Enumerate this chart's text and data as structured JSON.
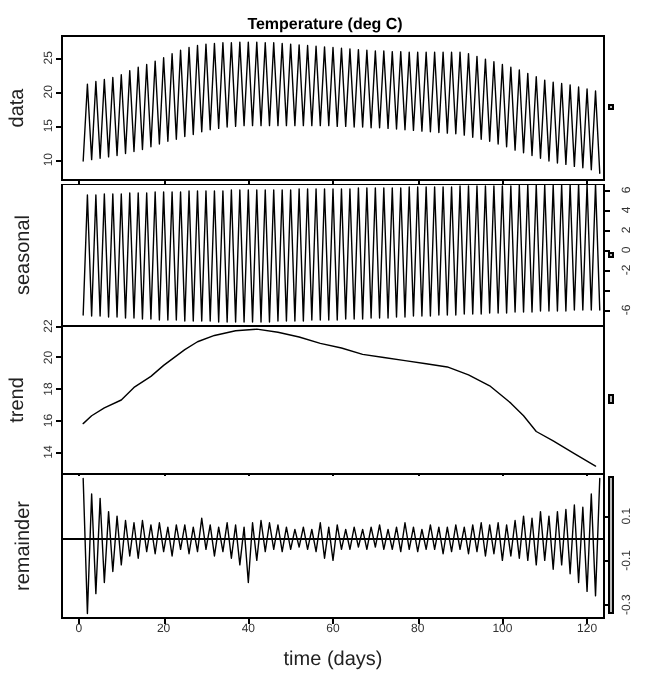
{
  "chart_data": [
    {
      "type": "line",
      "title": "Temperature (deg C)",
      "ylabel": "data",
      "xlim": [
        -4,
        124
      ],
      "xticks": [
        0,
        20,
        40,
        60,
        80,
        100,
        120
      ],
      "ylim": [
        7,
        28.2
      ],
      "yticks": [
        10,
        15,
        20,
        25
      ],
      "tick_labels": "y",
      "marker": "none",
      "x": [
        1,
        2,
        3,
        4,
        5,
        6,
        7,
        8,
        9,
        10,
        11,
        12,
        13,
        14,
        15,
        16,
        17,
        18,
        19,
        20,
        21,
        22,
        23,
        24,
        25,
        26,
        27,
        28,
        29,
        30,
        31,
        32,
        33,
        34,
        35,
        36,
        37,
        38,
        39,
        40,
        41,
        42,
        43,
        44,
        45,
        46,
        47,
        48,
        49,
        50,
        51,
        52,
        53,
        54,
        55,
        56,
        57,
        58,
        59,
        60,
        61,
        62,
        63,
        64,
        65,
        66,
        67,
        68,
        69,
        70,
        71,
        72,
        73,
        74,
        75,
        76,
        77,
        78,
        79,
        80,
        81,
        82,
        83,
        84,
        85,
        86,
        87,
        88,
        89,
        90,
        91,
        92,
        93,
        94,
        95,
        96,
        97,
        98,
        99,
        100,
        101,
        102,
        103,
        104,
        105,
        106,
        107,
        108,
        109,
        110,
        111,
        112,
        113,
        114,
        115,
        116,
        117,
        118,
        119,
        120,
        121,
        122,
        123
      ],
      "series": [
        {
          "color": "#000000",
          "values": [
            9.8,
            21.1,
            10.0,
            21.5,
            10.2,
            21.8,
            10.4,
            22.1,
            10.6,
            22.5,
            10.9,
            23.1,
            11.2,
            23.6,
            11.5,
            24.0,
            11.9,
            24.5,
            12.3,
            25.0,
            12.7,
            25.6,
            13.0,
            26.1,
            13.4,
            26.5,
            13.7,
            26.8,
            14.1,
            27.0,
            14.4,
            27.1,
            14.6,
            27.2,
            14.8,
            27.2,
            14.9,
            27.3,
            15.0,
            27.3,
            15.0,
            27.3,
            15.0,
            27.2,
            15.0,
            27.2,
            15.0,
            27.1,
            15.0,
            27.0,
            15.0,
            26.9,
            15.0,
            26.8,
            15.0,
            26.7,
            15.0,
            26.6,
            15.0,
            26.5,
            14.9,
            26.4,
            14.9,
            26.3,
            14.8,
            26.2,
            14.8,
            26.1,
            14.7,
            26.0,
            14.7,
            26.0,
            14.6,
            25.9,
            14.5,
            25.9,
            14.4,
            25.8,
            14.3,
            25.8,
            14.2,
            25.8,
            14.1,
            25.8,
            14.0,
            25.8,
            13.9,
            25.8,
            13.8,
            25.8,
            13.6,
            25.6,
            13.3,
            25.2,
            13.0,
            24.8,
            12.7,
            24.4,
            12.3,
            24.0,
            11.9,
            23.6,
            11.4,
            23.2,
            11.0,
            22.7,
            10.6,
            22.2,
            10.2,
            21.7,
            9.8,
            21.4,
            9.5,
            21.2,
            9.3,
            21.0,
            9.0,
            20.7,
            8.8,
            20.4,
            8.5,
            20.1,
            8.0
          ]
        }
      ]
    },
    {
      "type": "line",
      "ylabel": "seasonal",
      "xlim": [
        -4,
        124
      ],
      "xticks": [
        0,
        20,
        40,
        60,
        80,
        100,
        120
      ],
      "y2lim": [
        -7.6,
        6.6
      ],
      "y2ticks": [
        -6,
        {
          "value": -4,
          "label": null
        },
        -2,
        0,
        2,
        4,
        6
      ],
      "tick_labels": "y",
      "marker": "none",
      "x": [
        1,
        2,
        3,
        4,
        5,
        6,
        7,
        8,
        9,
        10,
        11,
        12,
        13,
        14,
        15,
        16,
        17,
        18,
        19,
        20,
        21,
        22,
        23,
        24,
        25,
        26,
        27,
        28,
        29,
        30,
        31,
        32,
        33,
        34,
        35,
        36,
        37,
        38,
        39,
        40,
        41,
        42,
        43,
        44,
        45,
        46,
        47,
        48,
        49,
        50,
        51,
        52,
        53,
        54,
        55,
        56,
        57,
        58,
        59,
        60,
        61,
        62,
        63,
        64,
        65,
        66,
        67,
        68,
        69,
        70,
        71,
        72,
        73,
        74,
        75,
        76,
        77,
        78,
        79,
        80,
        81,
        82,
        83,
        84,
        85,
        86,
        87,
        88,
        89,
        90,
        91,
        92,
        93,
        94,
        95,
        96,
        97,
        98,
        99,
        100,
        101,
        102,
        103,
        104,
        105,
        106,
        107,
        108,
        109,
        110,
        111,
        112,
        113,
        114,
        115,
        116,
        117,
        118,
        119,
        120,
        121,
        122,
        123
      ],
      "series": [
        {
          "color": "#000000",
          "axis": "y2",
          "values": [
            -6.5,
            5.5,
            -6.6,
            5.5,
            -6.6,
            5.6,
            -6.7,
            5.6,
            -6.7,
            5.6,
            -6.8,
            5.7,
            -6.8,
            5.7,
            -6.9,
            5.7,
            -6.9,
            5.8,
            -7.0,
            5.8,
            -7.0,
            5.8,
            -7.0,
            5.8,
            -7.1,
            5.9,
            -7.1,
            5.9,
            -7.1,
            5.9,
            -7.1,
            5.9,
            -7.2,
            5.9,
            -7.2,
            6.0,
            -7.2,
            6.0,
            -7.2,
            6.0,
            -7.2,
            6.0,
            -7.2,
            6.0,
            -7.2,
            6.0,
            -7.1,
            6.0,
            -7.1,
            6.0,
            -7.1,
            6.1,
            -7.1,
            6.1,
            -7.0,
            6.1,
            -7.0,
            6.1,
            -7.0,
            6.1,
            -7.0,
            6.1,
            -6.9,
            6.1,
            -6.9,
            6.2,
            -6.9,
            6.2,
            -6.8,
            6.2,
            -6.8,
            6.2,
            -6.8,
            6.2,
            -6.7,
            6.2,
            -6.7,
            6.3,
            -6.6,
            6.3,
            -6.6,
            6.3,
            -6.6,
            6.3,
            -6.5,
            6.3,
            -6.5,
            6.3,
            -6.5,
            6.4,
            -6.4,
            6.4,
            -6.4,
            6.4,
            -6.4,
            6.4,
            -6.3,
            6.4,
            -6.3,
            6.4,
            -6.3,
            6.4,
            -6.2,
            6.5,
            -6.2,
            6.5,
            -6.2,
            6.5,
            -6.1,
            6.5,
            -6.1,
            6.5,
            -6.1,
            6.5,
            -6.1,
            6.6,
            -6.0,
            6.6,
            -6.0,
            6.6,
            -6.0,
            6.6,
            -6.0
          ]
        }
      ]
    },
    {
      "type": "line",
      "ylabel": "trend",
      "xlim": [
        -4,
        124
      ],
      "xticks": [
        0,
        20,
        40,
        60,
        80,
        100,
        120
      ],
      "ylim": [
        12.6,
        22
      ],
      "yticks": [
        14,
        16,
        18,
        20,
        22
      ],
      "tick_labels": "y",
      "marker": "none",
      "series": [
        {
          "color": "#000000",
          "x": [
            1,
            3,
            6,
            10,
            13,
            17,
            20,
            25,
            28,
            32,
            37,
            42,
            47,
            52,
            57,
            62,
            67,
            72,
            77,
            82,
            87,
            92,
            97,
            102,
            105,
            108,
            112,
            117,
            122
          ],
          "values": [
            15.8,
            16.3,
            16.8,
            17.3,
            18.1,
            18.8,
            19.5,
            20.5,
            21.0,
            21.4,
            21.7,
            21.8,
            21.6,
            21.3,
            20.9,
            20.6,
            20.2,
            20.0,
            19.8,
            19.6,
            19.4,
            18.9,
            18.2,
            17.1,
            16.3,
            15.3,
            14.7,
            13.9,
            13.1
          ]
        }
      ]
    },
    {
      "type": "line",
      "ylabel": "remainder",
      "xlabel": "time (days)",
      "xlim": [
        -4,
        124
      ],
      "xticks": [
        0,
        20,
        40,
        60,
        80,
        100,
        120
      ],
      "y2lim": [
        -0.36,
        0.29
      ],
      "y2ticks": [
        -0.3,
        -0.1,
        0.1
      ],
      "marker": "none",
      "ref_lines": [
        {
          "axis": "y2",
          "value": 0,
          "color": "#000000"
        }
      ],
      "x": [
        1,
        2,
        3,
        4,
        5,
        6,
        7,
        8,
        9,
        10,
        11,
        12,
        13,
        14,
        15,
        16,
        17,
        18,
        19,
        20,
        21,
        22,
        23,
        24,
        25,
        26,
        27,
        28,
        29,
        30,
        31,
        32,
        33,
        34,
        35,
        36,
        37,
        38,
        39,
        40,
        41,
        42,
        43,
        44,
        45,
        46,
        47,
        48,
        49,
        50,
        51,
        52,
        53,
        54,
        55,
        56,
        57,
        58,
        59,
        60,
        61,
        62,
        63,
        64,
        65,
        66,
        67,
        68,
        69,
        70,
        71,
        72,
        73,
        74,
        75,
        76,
        77,
        78,
        79,
        80,
        81,
        82,
        83,
        84,
        85,
        86,
        87,
        88,
        89,
        90,
        91,
        92,
        93,
        94,
        95,
        96,
        97,
        98,
        99,
        100,
        101,
        102,
        103,
        104,
        105,
        106,
        107,
        108,
        109,
        110,
        111,
        112,
        113,
        114,
        115,
        116,
        117,
        118,
        119,
        120,
        121,
        122,
        123
      ],
      "series": [
        {
          "color": "#000000",
          "axis": "y2",
          "values": [
            0.27,
            -0.34,
            0.2,
            -0.25,
            0.18,
            -0.2,
            0.12,
            -0.15,
            0.1,
            -0.12,
            0.08,
            -0.08,
            0.07,
            -0.09,
            0.08,
            -0.06,
            0.06,
            -0.07,
            0.07,
            -0.06,
            0.05,
            -0.08,
            0.06,
            -0.05,
            0.06,
            -0.07,
            0.05,
            -0.06,
            0.09,
            -0.05,
            0.06,
            -0.08,
            0.05,
            -0.06,
            0.07,
            -0.09,
            0.06,
            -0.12,
            0.05,
            -0.2,
            0.07,
            -0.1,
            0.08,
            -0.06,
            0.07,
            -0.05,
            0.06,
            -0.06,
            0.05,
            -0.05,
            0.04,
            -0.04,
            0.05,
            -0.05,
            0.04,
            -0.06,
            0.07,
            -0.09,
            0.05,
            -0.1,
            0.06,
            -0.05,
            0.04,
            -0.05,
            0.05,
            -0.04,
            0.04,
            -0.05,
            0.05,
            -0.04,
            0.06,
            -0.05,
            0.04,
            -0.05,
            0.05,
            -0.06,
            0.07,
            -0.05,
            0.05,
            -0.06,
            0.04,
            -0.05,
            0.06,
            -0.05,
            0.05,
            -0.07,
            0.05,
            -0.06,
            0.06,
            -0.05,
            0.05,
            -0.07,
            0.06,
            -0.06,
            0.07,
            -0.08,
            0.06,
            -0.07,
            0.07,
            -0.1,
            0.06,
            -0.08,
            0.08,
            -0.09,
            0.1,
            -0.1,
            0.09,
            -0.12,
            0.12,
            -0.1,
            0.1,
            -0.14,
            0.12,
            -0.12,
            0.13,
            -0.16,
            0.15,
            -0.2,
            0.14,
            -0.24,
            0.2,
            -0.26,
            0.27
          ]
        }
      ]
    }
  ]
}
